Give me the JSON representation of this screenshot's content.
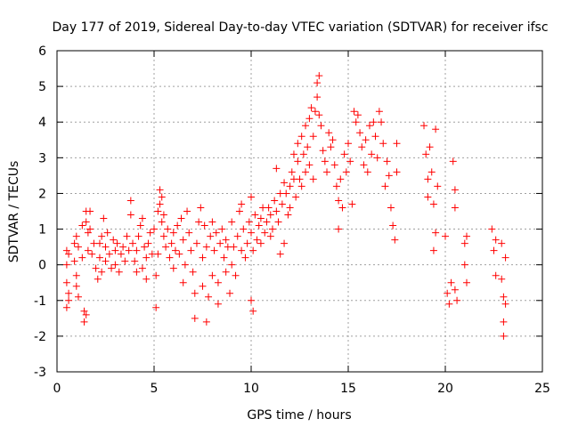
{
  "chart_data": {
    "type": "scatter",
    "title": "Day 177 of 2019, Sidereal Day-to-day VTEC variation (SDTVAR) for receiver ifsc",
    "xlabel": "GPS time / hours",
    "ylabel": "SDTVAR / TECUs",
    "xlim": [
      0,
      25
    ],
    "ylim": [
      -3,
      6
    ],
    "xticks": [
      0,
      5,
      10,
      15,
      20,
      25
    ],
    "yticks": [
      -3,
      -2,
      -1,
      0,
      1,
      2,
      3,
      4,
      5,
      6
    ],
    "xtick_labels": [
      "0",
      "5",
      "10",
      "15",
      "20",
      "25"
    ],
    "ytick_labels": [
      "-3",
      "-2",
      "-1",
      "0",
      "1",
      "2",
      "3",
      "4",
      "5",
      "6"
    ],
    "grid": true,
    "marker": "+",
    "color": "#ff0000",
    "series": [
      {
        "name": "SDTVAR",
        "points": [
          [
            0.5,
            0.4
          ],
          [
            0.5,
            0.0
          ],
          [
            0.5,
            -0.5
          ],
          [
            0.5,
            -1.2
          ],
          [
            0.6,
            0.3
          ],
          [
            0.6,
            -0.8
          ],
          [
            0.6,
            -1.0
          ],
          [
            0.9,
            0.6
          ],
          [
            0.9,
            0.1
          ],
          [
            1.0,
            0.8
          ],
          [
            1.0,
            -0.3
          ],
          [
            1.0,
            -0.6
          ],
          [
            1.1,
            0.5
          ],
          [
            1.1,
            -0.9
          ],
          [
            1.3,
            1.1
          ],
          [
            1.3,
            0.2
          ],
          [
            1.4,
            -1.3
          ],
          [
            1.4,
            -1.6
          ],
          [
            1.5,
            -1.4
          ],
          [
            1.5,
            1.5
          ],
          [
            1.5,
            1.2
          ],
          [
            1.6,
            0.4
          ],
          [
            1.6,
            0.9
          ],
          [
            1.7,
            1.5
          ],
          [
            1.7,
            1.0
          ],
          [
            1.8,
            0.3
          ],
          [
            1.9,
            0.6
          ],
          [
            2.0,
            -0.1
          ],
          [
            2.1,
            -0.4
          ],
          [
            2.2,
            0.6
          ],
          [
            2.2,
            0.2
          ],
          [
            2.3,
            0.8
          ],
          [
            2.3,
            -0.2
          ],
          [
            2.4,
            1.3
          ],
          [
            2.5,
            0.5
          ],
          [
            2.5,
            0.1
          ],
          [
            2.6,
            0.9
          ],
          [
            2.7,
            0.3
          ],
          [
            2.8,
            -0.1
          ],
          [
            2.9,
            0.7
          ],
          [
            3.0,
            0.4
          ],
          [
            3.0,
            0.0
          ],
          [
            3.1,
            0.6
          ],
          [
            3.2,
            -0.2
          ],
          [
            3.3,
            0.3
          ],
          [
            3.4,
            0.5
          ],
          [
            3.5,
            0.1
          ],
          [
            3.6,
            0.8
          ],
          [
            3.7,
            0.4
          ],
          [
            3.8,
            1.8
          ],
          [
            3.8,
            1.4
          ],
          [
            3.9,
            0.6
          ],
          [
            4.0,
            0.1
          ],
          [
            4.1,
            0.4
          ],
          [
            4.1,
            -0.2
          ],
          [
            4.2,
            0.8
          ],
          [
            4.3,
            1.1
          ],
          [
            4.4,
            1.3
          ],
          [
            4.4,
            -0.1
          ],
          [
            4.5,
            0.5
          ],
          [
            4.6,
            -0.4
          ],
          [
            4.6,
            0.2
          ],
          [
            4.7,
            0.6
          ],
          [
            4.8,
            0.9
          ],
          [
            4.9,
            0.3
          ],
          [
            5.0,
            1.0
          ],
          [
            5.1,
            -0.3
          ],
          [
            5.1,
            -1.2
          ],
          [
            5.2,
            0.3
          ],
          [
            5.2,
            1.5
          ],
          [
            5.3,
            2.1
          ],
          [
            5.3,
            1.7
          ],
          [
            5.4,
            1.9
          ],
          [
            5.4,
            1.2
          ],
          [
            5.5,
            1.4
          ],
          [
            5.5,
            0.8
          ],
          [
            5.6,
            0.5
          ],
          [
            5.7,
            1.0
          ],
          [
            5.8,
            0.2
          ],
          [
            5.9,
            0.6
          ],
          [
            6.0,
            -0.1
          ],
          [
            6.0,
            0.9
          ],
          [
            6.1,
            0.4
          ],
          [
            6.2,
            1.1
          ],
          [
            6.3,
            0.3
          ],
          [
            6.4,
            1.3
          ],
          [
            6.5,
            0.7
          ],
          [
            6.5,
            -0.5
          ],
          [
            6.6,
            0.0
          ],
          [
            6.7,
            1.5
          ],
          [
            6.8,
            0.9
          ],
          [
            6.9,
            0.4
          ],
          [
            7.0,
            -0.2
          ],
          [
            7.1,
            -0.8
          ],
          [
            7.1,
            -1.5
          ],
          [
            7.2,
            0.6
          ],
          [
            7.3,
            1.2
          ],
          [
            7.4,
            1.6
          ],
          [
            7.5,
            0.2
          ],
          [
            7.5,
            -0.6
          ],
          [
            7.6,
            1.1
          ],
          [
            7.7,
            0.5
          ],
          [
            7.7,
            -1.6
          ],
          [
            7.8,
            -0.9
          ],
          [
            7.9,
            0.8
          ],
          [
            8.0,
            1.2
          ],
          [
            8.0,
            -0.3
          ],
          [
            8.1,
            0.4
          ],
          [
            8.2,
            0.9
          ],
          [
            8.3,
            -0.5
          ],
          [
            8.3,
            -1.1
          ],
          [
            8.4,
            0.6
          ],
          [
            8.5,
            1.0
          ],
          [
            8.6,
            0.2
          ],
          [
            8.7,
            -0.2
          ],
          [
            8.7,
            0.7
          ],
          [
            8.8,
            0.5
          ],
          [
            8.9,
            -0.8
          ],
          [
            9.0,
            1.2
          ],
          [
            9.0,
            0.0
          ],
          [
            9.1,
            0.5
          ],
          [
            9.2,
            -0.3
          ],
          [
            9.3,
            0.8
          ],
          [
            9.4,
            1.5
          ],
          [
            9.5,
            1.7
          ],
          [
            9.5,
            0.4
          ],
          [
            9.6,
            1.0
          ],
          [
            9.7,
            0.2
          ],
          [
            9.8,
            0.6
          ],
          [
            9.9,
            1.2
          ],
          [
            10.0,
            1.9
          ],
          [
            10.0,
            0.9
          ],
          [
            10.0,
            -1.0
          ],
          [
            10.1,
            -1.3
          ],
          [
            10.1,
            0.4
          ],
          [
            10.2,
            1.4
          ],
          [
            10.3,
            0.7
          ],
          [
            10.4,
            1.1
          ],
          [
            10.5,
            1.3
          ],
          [
            10.5,
            0.6
          ],
          [
            10.6,
            1.6
          ],
          [
            10.7,
            0.9
          ],
          [
            10.8,
            1.2
          ],
          [
            10.9,
            1.6
          ],
          [
            11.0,
            1.4
          ],
          [
            11.0,
            0.8
          ],
          [
            11.1,
            1.0
          ],
          [
            11.2,
            1.8
          ],
          [
            11.3,
            2.7
          ],
          [
            11.3,
            1.5
          ],
          [
            11.4,
            1.2
          ],
          [
            11.5,
            2.0
          ],
          [
            11.5,
            0.3
          ],
          [
            11.6,
            1.7
          ],
          [
            11.7,
            2.3
          ],
          [
            11.7,
            0.6
          ],
          [
            11.8,
            2.0
          ],
          [
            11.9,
            1.4
          ],
          [
            12.0,
            2.2
          ],
          [
            12.0,
            1.6
          ],
          [
            12.1,
            2.6
          ],
          [
            12.2,
            3.1
          ],
          [
            12.2,
            2.4
          ],
          [
            12.3,
            1.9
          ],
          [
            12.4,
            2.9
          ],
          [
            12.4,
            3.4
          ],
          [
            12.5,
            2.4
          ],
          [
            12.6,
            3.6
          ],
          [
            12.6,
            2.2
          ],
          [
            12.7,
            3.1
          ],
          [
            12.8,
            2.6
          ],
          [
            12.8,
            3.9
          ],
          [
            12.9,
            3.3
          ],
          [
            13.0,
            4.1
          ],
          [
            13.0,
            2.8
          ],
          [
            13.1,
            4.4
          ],
          [
            13.2,
            3.6
          ],
          [
            13.2,
            2.4
          ],
          [
            13.3,
            4.3
          ],
          [
            13.4,
            5.1
          ],
          [
            13.4,
            4.7
          ],
          [
            13.5,
            5.3
          ],
          [
            13.5,
            4.2
          ],
          [
            13.6,
            3.9
          ],
          [
            13.7,
            3.2
          ],
          [
            13.8,
            2.9
          ],
          [
            13.9,
            2.6
          ],
          [
            14.0,
            3.7
          ],
          [
            14.1,
            3.3
          ],
          [
            14.2,
            3.5
          ],
          [
            14.3,
            2.8
          ],
          [
            14.4,
            2.2
          ],
          [
            14.5,
            1.8
          ],
          [
            14.5,
            1.0
          ],
          [
            14.6,
            2.4
          ],
          [
            14.7,
            1.6
          ],
          [
            14.8,
            3.1
          ],
          [
            14.9,
            2.6
          ],
          [
            15.0,
            3.4
          ],
          [
            15.1,
            2.9
          ],
          [
            15.2,
            1.7
          ],
          [
            15.3,
            4.3
          ],
          [
            15.4,
            4.0
          ],
          [
            15.5,
            4.2
          ],
          [
            15.6,
            3.7
          ],
          [
            15.7,
            3.3
          ],
          [
            15.8,
            2.8
          ],
          [
            15.9,
            3.5
          ],
          [
            16.0,
            2.6
          ],
          [
            16.1,
            3.9
          ],
          [
            16.2,
            3.1
          ],
          [
            16.3,
            4.0
          ],
          [
            16.4,
            3.6
          ],
          [
            16.5,
            3.0
          ],
          [
            16.6,
            4.3
          ],
          [
            16.7,
            4.0
          ],
          [
            16.8,
            3.4
          ],
          [
            16.9,
            2.2
          ],
          [
            17.0,
            2.9
          ],
          [
            17.1,
            2.5
          ],
          [
            17.2,
            1.6
          ],
          [
            17.3,
            1.1
          ],
          [
            17.4,
            0.7
          ],
          [
            17.5,
            3.4
          ],
          [
            17.5,
            2.6
          ],
          [
            18.9,
            3.9
          ],
          [
            19.0,
            3.1
          ],
          [
            19.1,
            2.4
          ],
          [
            19.1,
            1.9
          ],
          [
            19.2,
            3.3
          ],
          [
            19.3,
            2.6
          ],
          [
            19.4,
            1.7
          ],
          [
            19.4,
            0.4
          ],
          [
            19.5,
            0.9
          ],
          [
            19.5,
            3.8
          ],
          [
            19.6,
            2.2
          ],
          [
            20.0,
            0.8
          ],
          [
            20.1,
            -0.8
          ],
          [
            20.2,
            -1.1
          ],
          [
            20.3,
            -0.5
          ],
          [
            20.4,
            2.9
          ],
          [
            20.5,
            2.1
          ],
          [
            20.5,
            1.6
          ],
          [
            20.5,
            -0.7
          ],
          [
            20.6,
            -1.0
          ],
          [
            21.0,
            0.6
          ],
          [
            21.0,
            0.0
          ],
          [
            21.1,
            -0.5
          ],
          [
            21.1,
            0.8
          ],
          [
            22.4,
            1.0
          ],
          [
            22.5,
            0.4
          ],
          [
            22.6,
            -0.3
          ],
          [
            22.6,
            0.7
          ],
          [
            22.9,
            0.6
          ],
          [
            22.9,
            -0.4
          ],
          [
            23.0,
            -0.9
          ],
          [
            23.0,
            -1.6
          ],
          [
            23.0,
            -2.0
          ],
          [
            23.1,
            0.2
          ],
          [
            23.1,
            -1.1
          ]
        ]
      }
    ]
  }
}
